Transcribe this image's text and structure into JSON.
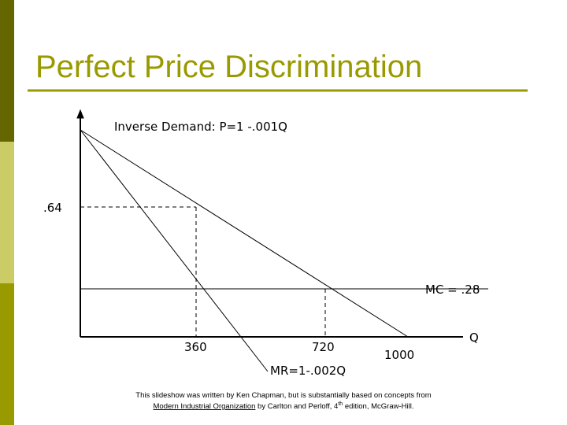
{
  "header": {
    "title": "Perfect Price Discrimination"
  },
  "diagram": {
    "demand_label": "Inverse Demand: P=1 -.001Q",
    "price_label": ".64",
    "mc_label": "MC = .28",
    "q_label_360": "360",
    "q_label_720": "720",
    "q_label_1000": "1000",
    "axis_label_q": "Q",
    "mr_label": "MR=1-.002Q"
  },
  "footer": {
    "line1": "This slideshow was written by Ken Chapman, but is substantially based on concepts from",
    "book": "Modern Industrial Organization",
    "line2a": " by Carlton and Perloff, 4",
    "sup": "th",
    "line2b": " edition, McGraw-Hill."
  }
}
